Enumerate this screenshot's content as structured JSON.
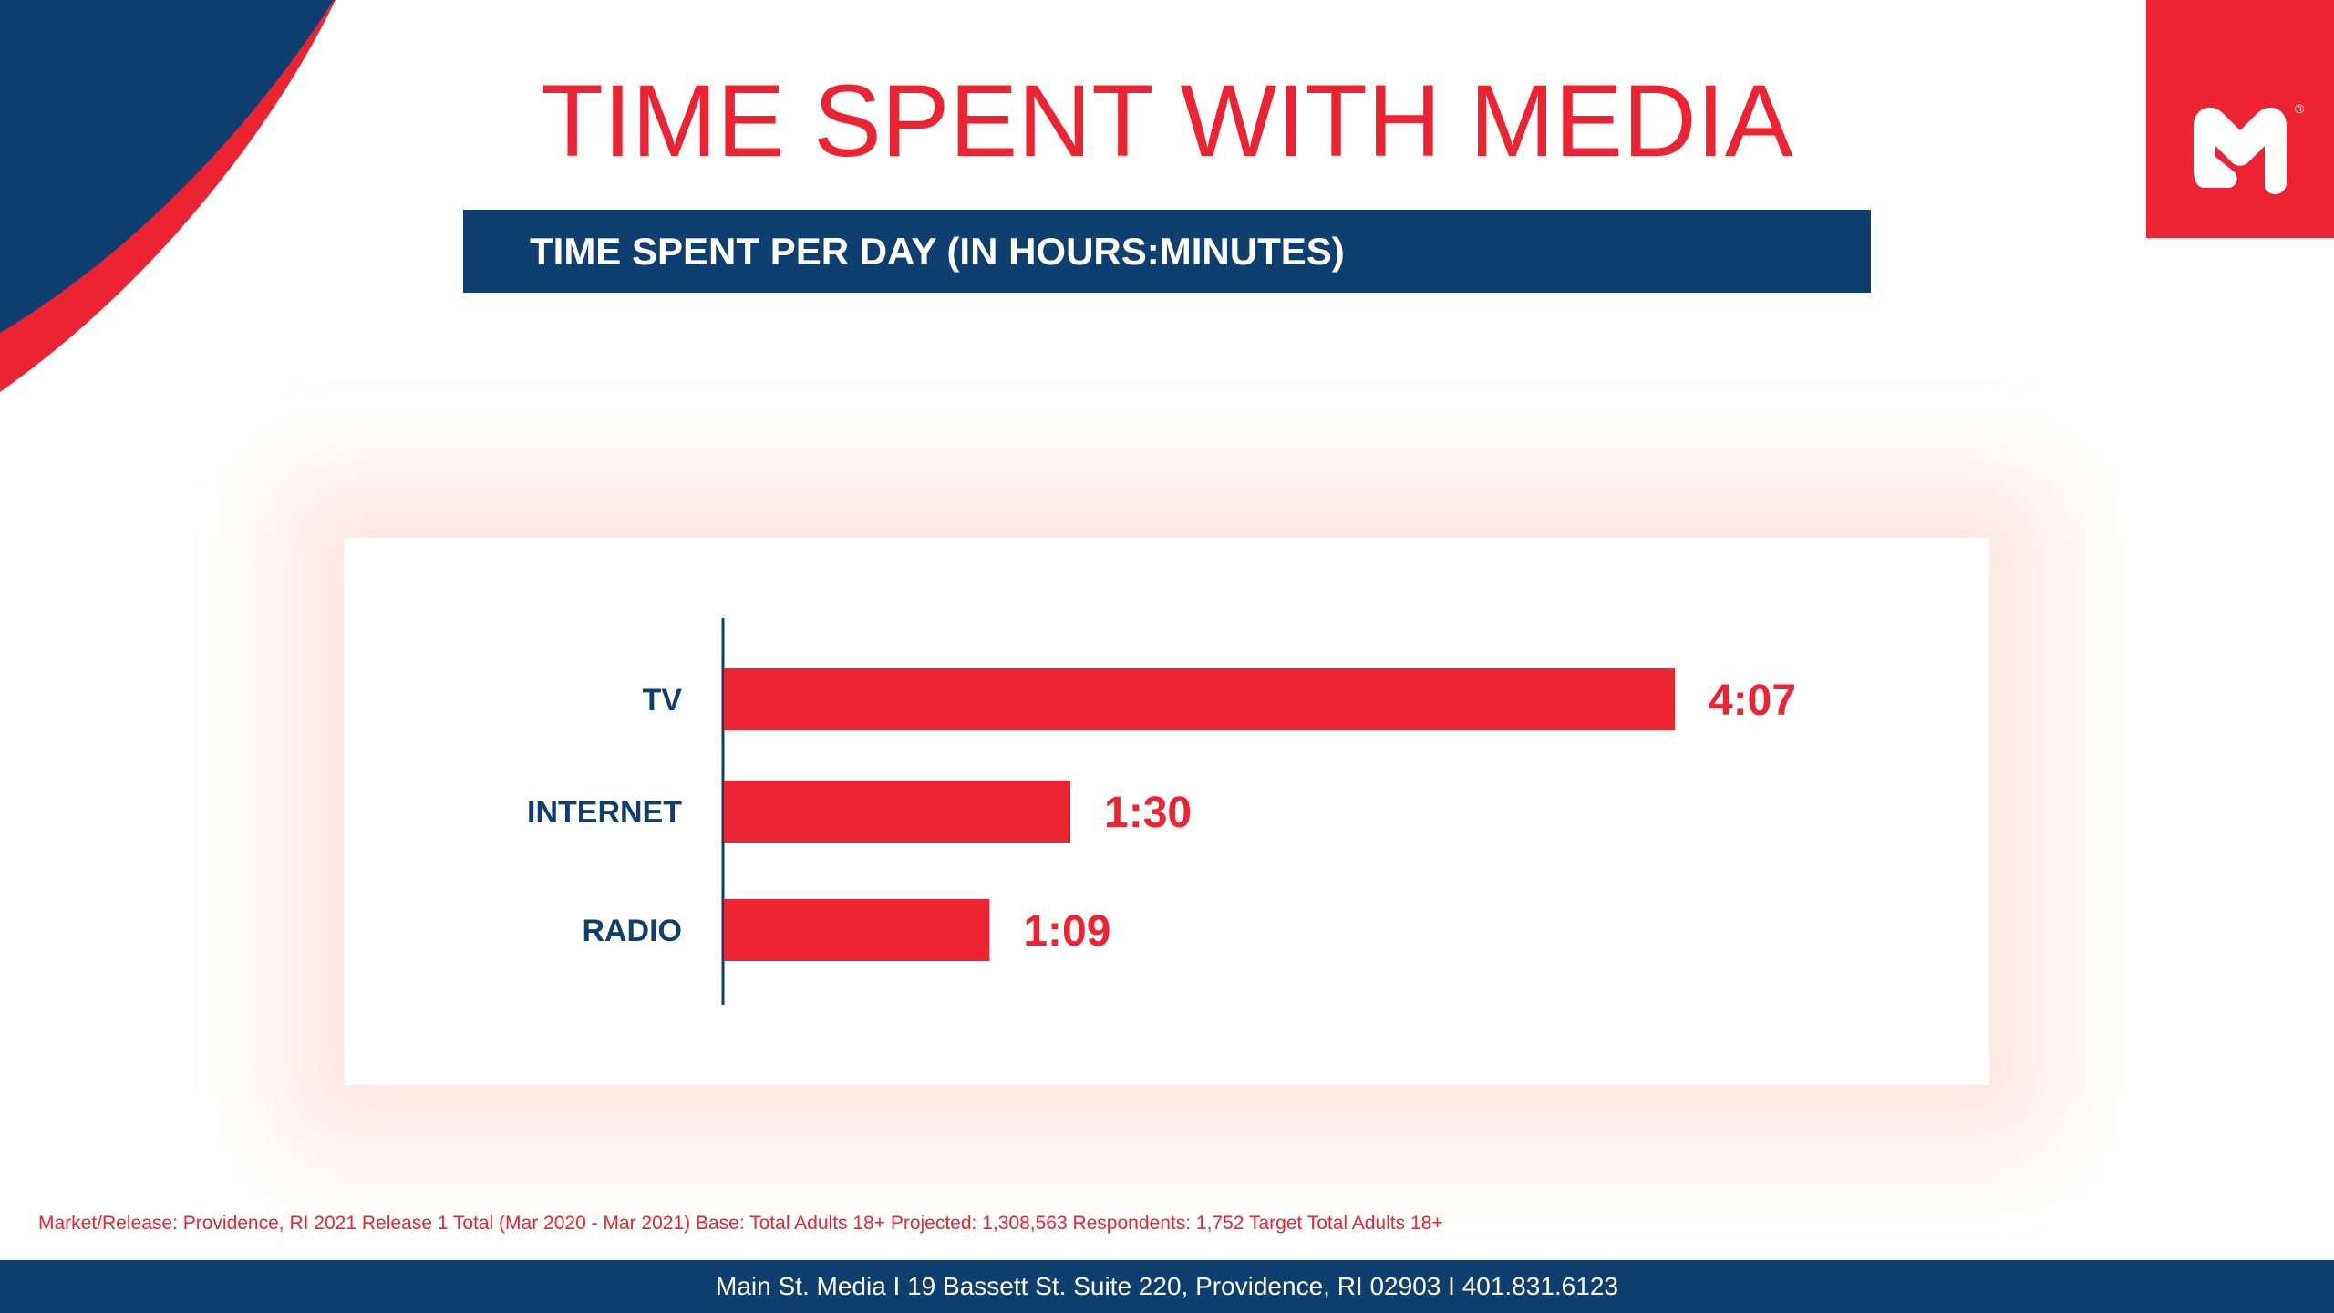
{
  "title": "TIME SPENT WITH MEDIA",
  "subtitle": "TIME SPENT PER DAY (IN HOURS:MINUTES)",
  "colors": {
    "brand_red": "#ec2330",
    "brand_navy": "#0f3f6e",
    "background": "#ffffff"
  },
  "logo": {
    "icon": "m-logo-icon",
    "mark": "®"
  },
  "chart_data": {
    "type": "bar",
    "orientation": "horizontal",
    "categories": [
      "TV",
      "INTERNET",
      "RADIO"
    ],
    "values_minutes": [
      247,
      90,
      69
    ],
    "value_labels": [
      "4:07",
      "1:30",
      "1:09"
    ],
    "bar_color": "#ec2330",
    "category_label_color": "#0f3f6e",
    "xlim_minutes": [
      0,
      247
    ],
    "grid": false,
    "legend": "none"
  },
  "footnote": "Market/Release: Providence, RI 2021 Release 1 Total (Mar 2020 - Mar 2021) Base: Total Adults 18+ Projected: 1,308,563 Respondents: 1,752 Target Total Adults 18+",
  "footer": "Main St. Media I 19 Bassett St. Suite 220, Providence, RI 02903 I 401.831.6123"
}
